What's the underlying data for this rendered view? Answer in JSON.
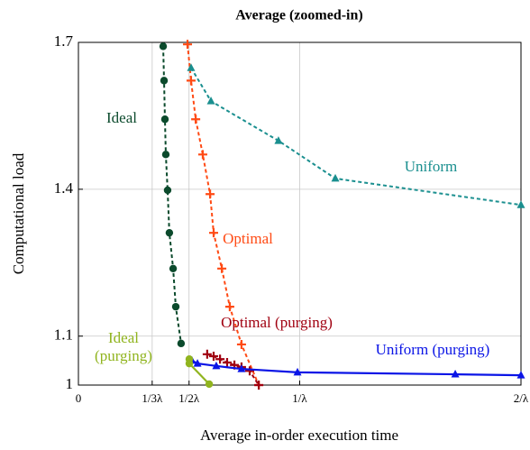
{
  "chart_data": {
    "type": "line",
    "title": "Average (zoomed-in)",
    "x_label": "Average in-order execution time",
    "y_label": "Computational load",
    "xlim": [
      0,
      2
    ],
    "ylim": [
      1,
      1.7
    ],
    "xticks": [
      0,
      {
        "value": 0.3333,
        "label": "1/3λ"
      },
      {
        "value": 0.5,
        "label": "1/2λ"
      },
      {
        "value": 1,
        "label": "1/λ"
      },
      {
        "value": 2,
        "label": "2/λ"
      }
    ],
    "yticks": [
      1,
      1.1,
      1.4,
      1.7
    ],
    "grid": true,
    "series": [
      {
        "name": "Ideal",
        "color": "#0b4a2c",
        "marker": "circle",
        "dash": true,
        "x": [
          0.383,
          0.387,
          0.391,
          0.395,
          0.403,
          0.411,
          0.428,
          0.44,
          0.464
        ],
        "values": [
          1.692,
          1.622,
          1.543,
          1.471,
          1.398,
          1.311,
          1.238,
          1.16,
          1.085
        ]
      },
      {
        "name": "Optimal",
        "color": "#ff4a14",
        "marker": "plus",
        "dash": true,
        "x": [
          0.493,
          0.509,
          0.53,
          0.562,
          0.595,
          0.611,
          0.648,
          0.684,
          0.737,
          0.815
        ],
        "values": [
          1.696,
          1.622,
          1.543,
          1.471,
          1.39,
          1.311,
          1.238,
          1.16,
          1.083,
          1.0
        ]
      },
      {
        "name": "Uniform",
        "color": "#1a8f8f",
        "marker": "triangle",
        "dash": true,
        "x": [
          0.509,
          0.599,
          0.904,
          1.161,
          2.0
        ],
        "values": [
          1.648,
          1.58,
          1.499,
          1.422,
          1.368
        ]
      },
      {
        "name": "Optimal (purging)",
        "color": "#a00010",
        "marker": "plus",
        "dash": true,
        "x": [
          0.582,
          0.611,
          0.64,
          0.672,
          0.705,
          0.737,
          0.774,
          0.815
        ],
        "values": [
          1.063,
          1.059,
          1.053,
          1.046,
          1.041,
          1.037,
          1.029,
          1.0
        ]
      },
      {
        "name": "Uniform (purging)",
        "color": "#0a14e6",
        "marker": "triangle",
        "dash": false,
        "x": [
          0.513,
          0.538,
          0.623,
          0.737,
          0.99,
          1.703,
          2.0
        ],
        "values": [
          1.05,
          1.044,
          1.039,
          1.033,
          1.026,
          1.022,
          1.02
        ]
      },
      {
        "name": "Ideal (purging)",
        "color": "#90b41e",
        "marker": "circle",
        "dash": false,
        "x": [
          0.501,
          0.501,
          0.591
        ],
        "values": [
          1.053,
          1.044,
          1.002
        ]
      }
    ]
  }
}
